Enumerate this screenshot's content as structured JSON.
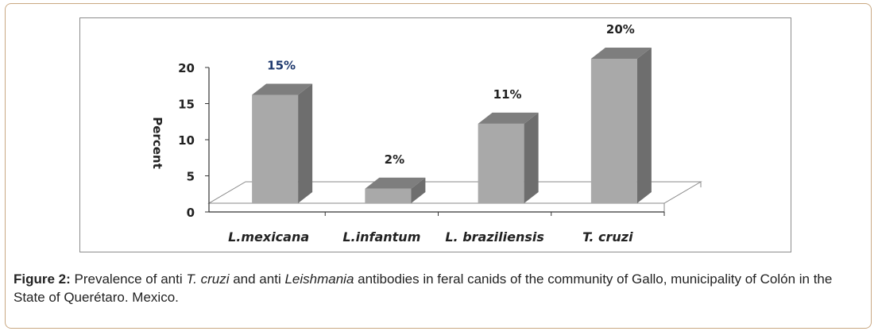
{
  "chart_data": {
    "type": "bar",
    "categories": [
      "L.mexicana",
      "L.infantum",
      "L. braziliensis",
      "T. cruzi"
    ],
    "values": [
      15,
      2,
      11,
      20
    ],
    "data_labels": [
      "15%",
      "2%",
      "11%",
      "20%"
    ],
    "ylabel": "Percent",
    "yticks": [
      "0",
      "5",
      "10",
      "15",
      "20"
    ],
    "ylim": [
      0,
      20
    ],
    "grid": false,
    "label_colors": [
      "#1f3a6e",
      "#222222",
      "#222222",
      "#222222"
    ],
    "bar_color": "#a9a9a9"
  },
  "caption": {
    "label": "Figure 2:",
    "part1": " Prevalence of anti ",
    "ital1": "T. cruzi",
    "part2": " and anti ",
    "ital2": "Leishmania",
    "part3": " antibodies in feral canids of the community of Gallo, municipality of Colón in the State of Querétaro. Mexico."
  }
}
